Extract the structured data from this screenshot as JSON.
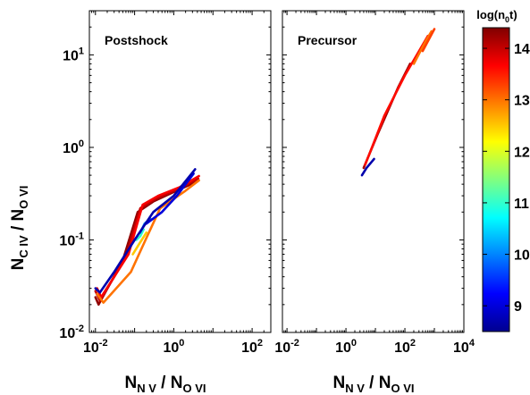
{
  "chart_data": [
    {
      "type": "line",
      "panel_label": "Postshock",
      "xscale": "log",
      "yscale": "log",
      "xlim": [
        0.007,
        300
      ],
      "ylim": [
        0.01,
        30
      ],
      "x_ticks": [
        {
          "value": 0.01,
          "base": "10",
          "exp": "-2"
        },
        {
          "value": 1,
          "base": "10",
          "exp": "0"
        },
        {
          "value": 100,
          "base": "10",
          "exp": "2"
        }
      ],
      "y_ticks": [
        {
          "value": 0.01,
          "base": "10",
          "exp": "-2"
        },
        {
          "value": 0.1,
          "base": "10",
          "exp": "-1"
        },
        {
          "value": 1,
          "base": "10",
          "exp": "0"
        },
        {
          "value": 10,
          "base": "10",
          "exp": "1"
        }
      ],
      "series": [
        {
          "color_value": 14.3,
          "x": [
            0.01,
            0.012,
            0.05,
            0.12,
            0.3,
            1.0,
            4.0
          ],
          "y": [
            0.024,
            0.02,
            0.06,
            0.2,
            0.26,
            0.33,
            0.43
          ]
        },
        {
          "color_value": 14.0,
          "x": [
            0.01,
            0.013,
            0.06,
            0.14,
            0.35,
            1.2,
            4.2
          ],
          "y": [
            0.028,
            0.022,
            0.065,
            0.22,
            0.28,
            0.35,
            0.46
          ]
        },
        {
          "color_value": 13.7,
          "x": [
            0.011,
            0.014,
            0.07,
            0.16,
            0.4,
            1.4,
            4.4
          ],
          "y": [
            0.03,
            0.024,
            0.07,
            0.24,
            0.3,
            0.37,
            0.49
          ]
        },
        {
          "color_value": 13.0,
          "x": [
            0.011,
            0.016,
            0.08,
            0.19,
            0.45,
            2.0,
            4.4
          ],
          "y": [
            0.026,
            0.021,
            0.045,
            0.1,
            0.22,
            0.34,
            0.44
          ]
        },
        {
          "color_value": 12.5,
          "x": [
            0.09,
            0.13,
            0.2
          ],
          "y": [
            0.07,
            0.09,
            0.12
          ]
        },
        {
          "color_value": 11.0,
          "x": [
            0.11,
            0.14,
            0.17
          ],
          "y": [
            0.1,
            0.11,
            0.13
          ]
        },
        {
          "color_value": 10.0,
          "x": [
            0.14,
            0.18,
            0.25
          ],
          "y": [
            0.12,
            0.15,
            0.17
          ]
        },
        {
          "color_value": 9.0,
          "x": [
            0.2,
            0.5,
            1.2,
            3.2
          ],
          "y": [
            0.15,
            0.2,
            0.3,
            0.52
          ]
        },
        {
          "color_value": 8.7,
          "x": [
            0.01,
            0.013,
            0.03,
            0.1,
            0.3,
            1.0,
            3.5
          ],
          "y": [
            0.03,
            0.027,
            0.045,
            0.1,
            0.2,
            0.3,
            0.58
          ]
        }
      ]
    },
    {
      "type": "line",
      "panel_label": "Precursor",
      "xscale": "log",
      "yscale": "log",
      "xlim": [
        0.007,
        10000
      ],
      "ylim": [
        0.01,
        30
      ],
      "x_ticks": [
        {
          "value": 0.01,
          "base": "10",
          "exp": "-2"
        },
        {
          "value": 1,
          "base": "10",
          "exp": "0"
        },
        {
          "value": 100,
          "base": "10",
          "exp": "2"
        },
        {
          "value": 10000,
          "base": "10",
          "exp": "4"
        }
      ],
      "series": [
        {
          "color_value": 8.7,
          "x": [
            3.5,
            5,
            9
          ],
          "y": [
            0.5,
            0.6,
            0.75
          ]
        },
        {
          "color_value": 14.2,
          "x": [
            4,
            12,
            60,
            150
          ],
          "y": [
            0.6,
            1.4,
            4.5,
            8
          ]
        },
        {
          "color_value": 13.6,
          "x": [
            4.5,
            20,
            100,
            600
          ],
          "y": [
            0.65,
            2.2,
            6,
            16
          ]
        },
        {
          "color_value": 13.0,
          "x": [
            200,
            500,
            800
          ],
          "y": [
            8,
            14,
            18
          ]
        },
        {
          "color_value": 13.3,
          "x": [
            400,
            1000
          ],
          "y": [
            11,
            19
          ]
        }
      ]
    }
  ],
  "axes": {
    "xlabel": {
      "a": "N",
      "a_sub": "N V",
      "sep": " / ",
      "b": "N",
      "b_sub": "O VI"
    },
    "ylabel": {
      "a": "N",
      "a_sub": "C IV",
      "sep": " / ",
      "b": "N",
      "b_sub": "O VI"
    }
  },
  "colorbar": {
    "label": {
      "pre": "log(n",
      "sub": "0",
      "post": "t)"
    },
    "range": [
      8.5,
      14.4
    ],
    "ticks": [
      "9",
      "10",
      "11",
      "12",
      "13",
      "14"
    ],
    "stops": [
      "#00008f",
      "#0000ff",
      "#0080ff",
      "#00ffff",
      "#80ff80",
      "#ffff00",
      "#ff8000",
      "#ff0000",
      "#800000"
    ]
  }
}
